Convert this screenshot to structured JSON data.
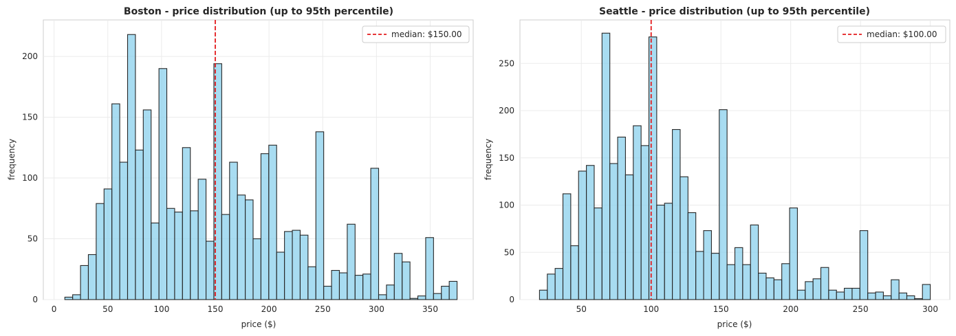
{
  "colors": {
    "bar_fill": "#87ceeb",
    "bar_edge": "#262626",
    "median_line": "#e41a1c",
    "grid": "#ebebeb",
    "frame": "#cccccc"
  },
  "chart_data": [
    {
      "type": "bar",
      "title": "Boston - price distribution (up to 95th percentile)",
      "xlabel": "price ($)",
      "ylabel": "frequency",
      "xlim": [
        -10,
        390
      ],
      "ylim": [
        0,
        230
      ],
      "xticks": [
        0,
        50,
        100,
        150,
        200,
        250,
        300,
        350
      ],
      "yticks": [
        0,
        50,
        100,
        150,
        200
      ],
      "grid": true,
      "legend_position": "top-right",
      "bin_start": 10,
      "bin_width": 7.3,
      "values": [
        2,
        4,
        28,
        37,
        79,
        91,
        161,
        113,
        218,
        123,
        156,
        63,
        190,
        75,
        72,
        125,
        73,
        99,
        48,
        194,
        70,
        113,
        86,
        82,
        50,
        120,
        127,
        39,
        56,
        57,
        53,
        27,
        138,
        11,
        24,
        22,
        62,
        20,
        21,
        108,
        4,
        12,
        38,
        31,
        1,
        3,
        51,
        5,
        11,
        15
      ],
      "median": {
        "value": 150,
        "label": "median: $150.00"
      }
    },
    {
      "type": "bar",
      "title": "Seattle - price distribution (up to 95th percentile)",
      "xlabel": "price ($)",
      "ylabel": "frequency",
      "xlim": [
        6,
        314
      ],
      "ylim": [
        0,
        296
      ],
      "xticks": [
        50,
        100,
        150,
        200,
        250,
        300
      ],
      "yticks": [
        0,
        50,
        100,
        150,
        200,
        250
      ],
      "grid": true,
      "legend_position": "top-right",
      "bin_start": 20,
      "bin_width": 5.6,
      "values": [
        10,
        27,
        33,
        112,
        57,
        136,
        142,
        97,
        282,
        144,
        172,
        132,
        184,
        163,
        278,
        100,
        102,
        180,
        130,
        92,
        51,
        73,
        49,
        201,
        37,
        55,
        37,
        79,
        28,
        23,
        21,
        38,
        97,
        10,
        19,
        22,
        34,
        10,
        8,
        12,
        12,
        73,
        7,
        8,
        4,
        21,
        7,
        4,
        1,
        16
      ],
      "median": {
        "value": 100,
        "label": "median: $100.00"
      }
    }
  ]
}
